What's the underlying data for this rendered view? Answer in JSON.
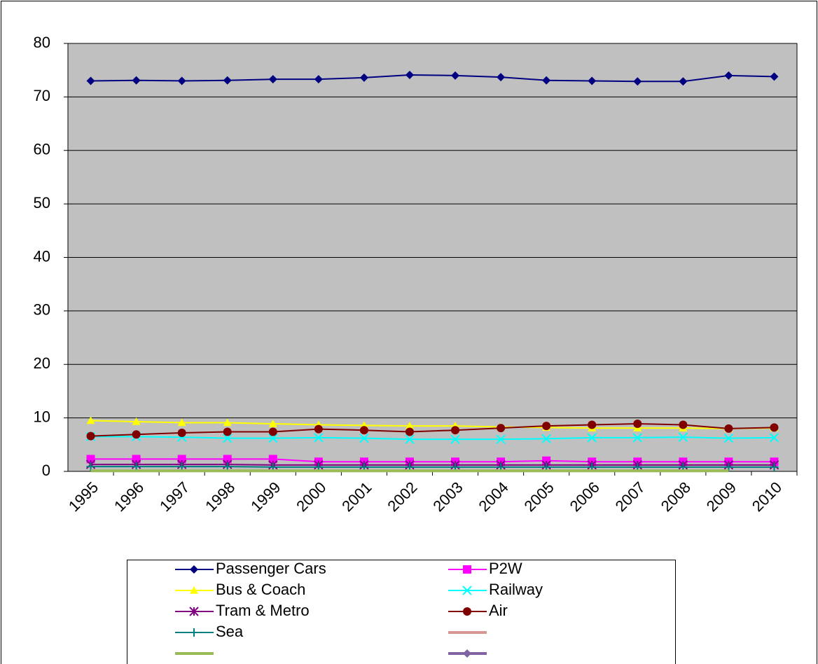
{
  "chart_data": {
    "type": "line",
    "categories": [
      "1995",
      "1996",
      "1997",
      "1998",
      "1999",
      "2000",
      "2001",
      "2002",
      "2003",
      "2004",
      "2005",
      "2006",
      "2007",
      "2008",
      "2009",
      "2010"
    ],
    "ylim": [
      0,
      80
    ],
    "yticks": [
      0,
      10,
      20,
      30,
      40,
      50,
      60,
      70,
      80
    ],
    "grid": true,
    "series": [
      {
        "name": "Passenger Cars",
        "color": "#000080",
        "marker": "diamond",
        "values": [
          73.0,
          73.1,
          73.0,
          73.1,
          73.3,
          73.3,
          73.6,
          74.1,
          74.0,
          73.7,
          73.1,
          73.0,
          72.9,
          72.9,
          74.0,
          73.8
        ]
      },
      {
        "name": "P2W",
        "color": "#ff00ff",
        "marker": "square",
        "values": [
          2.3,
          2.3,
          2.3,
          2.3,
          2.3,
          1.8,
          1.8,
          1.8,
          1.8,
          1.8,
          2.0,
          1.8,
          1.8,
          1.8,
          1.8,
          1.8
        ]
      },
      {
        "name": "Bus & Coach",
        "color": "#ffff00",
        "marker": "triangle",
        "values": [
          9.5,
          9.3,
          9.1,
          9.1,
          8.9,
          8.7,
          8.6,
          8.5,
          8.5,
          8.3,
          8.2,
          8.1,
          8.1,
          8.1,
          8.0,
          8.1
        ]
      },
      {
        "name": "Railway",
        "color": "#00ffff",
        "marker": "x",
        "values": [
          6.5,
          6.5,
          6.4,
          6.2,
          6.2,
          6.3,
          6.2,
          6.0,
          6.0,
          6.0,
          6.1,
          6.3,
          6.3,
          6.4,
          6.2,
          6.3
        ]
      },
      {
        "name": "Tram & Metro",
        "color": "#800080",
        "marker": "star",
        "values": [
          1.3,
          1.3,
          1.3,
          1.3,
          1.2,
          1.2,
          1.2,
          1.2,
          1.2,
          1.2,
          1.2,
          1.2,
          1.2,
          1.2,
          1.2,
          1.2
        ]
      },
      {
        "name": "Air",
        "color": "#800000",
        "marker": "circle",
        "values": [
          6.6,
          6.9,
          7.2,
          7.4,
          7.4,
          7.9,
          7.7,
          7.4,
          7.7,
          8.1,
          8.5,
          8.7,
          8.9,
          8.7,
          8.0,
          8.2
        ]
      },
      {
        "name": "Sea",
        "color": "#008080",
        "marker": "plus",
        "values": [
          0.9,
          0.9,
          0.9,
          0.9,
          0.8,
          0.8,
          0.8,
          0.8,
          0.8,
          0.8,
          0.8,
          0.8,
          0.8,
          0.8,
          0.8,
          0.8
        ]
      },
      {
        "color": "#d99694",
        "marker": "none",
        "values": [
          null,
          null,
          null,
          null,
          null,
          null,
          null,
          null,
          null,
          null,
          null,
          null,
          null,
          null,
          null,
          null
        ]
      },
      {
        "color": "#9bbb59",
        "marker": "none",
        "values": [
          0.1,
          0.1,
          0.1,
          0.1,
          0.1,
          0.1,
          0.1,
          0.1,
          0.1,
          0.1,
          0.1,
          0.1,
          0.1,
          0.1,
          0.1,
          null
        ]
      },
      {
        "color": "#8064a2",
        "marker": "diamond",
        "values": [
          null,
          null,
          null,
          null,
          null,
          null,
          null,
          null,
          null,
          null,
          null,
          null,
          null,
          null,
          null,
          null
        ]
      }
    ]
  }
}
